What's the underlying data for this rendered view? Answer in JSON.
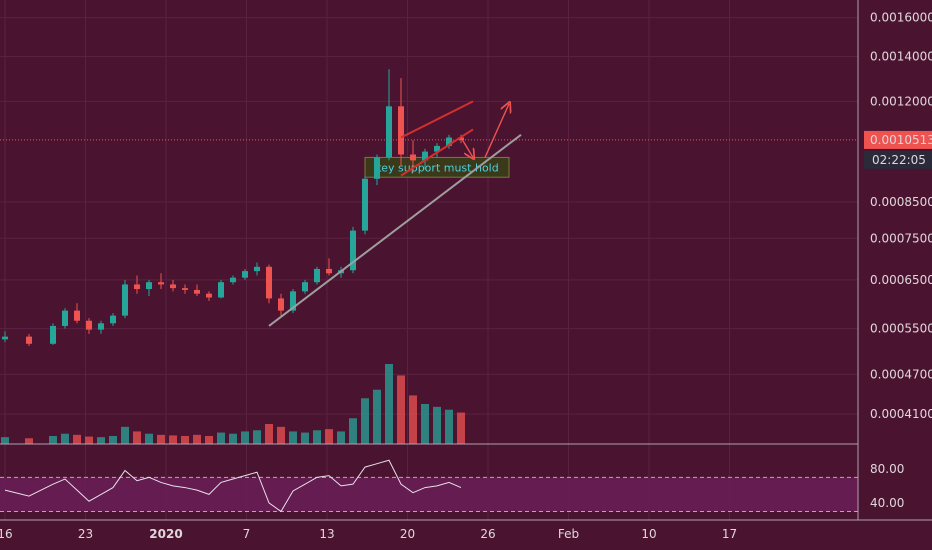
{
  "colors": {
    "background": "#4a1430",
    "up": "#26a69a",
    "down": "#ef5350",
    "grid": "#5a2240",
    "price_line": "#ef5350",
    "support_zone_fill": "#3a3a1a",
    "support_zone_border": "#7a7a3a",
    "trendline": "#9e9e9e",
    "channel": "#d32f2f",
    "rsi_line": "#e8e0e8",
    "rsi_band": "#6a1e5a",
    "annotation_text": "#4dd0e1",
    "arrow": "#ef5350",
    "current_price_label_bg": "#ef5350",
    "countdown_label_bg": "#2a2a3a"
  },
  "price_axis": {
    "ticks": [
      "0.0016000",
      "0.0014000",
      "0.0012000",
      "0.0010513",
      "0.0008500",
      "0.0007500",
      "0.0006500",
      "0.0005500",
      "0.0004700",
      "0.0004100"
    ],
    "current_price": "0.0010513",
    "countdown": "02:22:05"
  },
  "rsi_axis": {
    "ticks": [
      "80.00",
      "40.00"
    ]
  },
  "time_axis": {
    "ticks": [
      "16",
      "23",
      "2020",
      "7",
      "13",
      "20",
      "26",
      "Feb",
      "10",
      "17"
    ]
  },
  "annotation": {
    "text": "key support must hold"
  },
  "chart_data": {
    "type": "candlestick",
    "interval": "4h",
    "x_start": "2019-12-16",
    "price_scale": "log",
    "ylim": [
      0.00037,
      0.0017
    ],
    "candles": [
      {
        "date": "2019-12-16",
        "open": 0.00053,
        "high": 0.000545,
        "low": 0.000525,
        "close": 0.000535
      },
      {
        "date": "2019-12-18",
        "open": 0.000535,
        "high": 0.00054,
        "low": 0.000518,
        "close": 0.000522
      },
      {
        "date": "2019-12-20",
        "open": 0.000522,
        "high": 0.00056,
        "low": 0.00052,
        "close": 0.000555
      },
      {
        "date": "2019-12-21",
        "open": 0.000555,
        "high": 0.00059,
        "low": 0.00055,
        "close": 0.000585
      },
      {
        "date": "2019-12-22",
        "open": 0.000585,
        "high": 0.0006,
        "low": 0.00056,
        "close": 0.000565
      },
      {
        "date": "2019-12-23",
        "open": 0.000565,
        "high": 0.00057,
        "low": 0.00054,
        "close": 0.000548
      },
      {
        "date": "2019-12-24",
        "open": 0.000548,
        "high": 0.000565,
        "low": 0.00054,
        "close": 0.00056
      },
      {
        "date": "2019-12-25",
        "open": 0.00056,
        "high": 0.00058,
        "low": 0.000555,
        "close": 0.000575
      },
      {
        "date": "2019-12-26",
        "open": 0.000575,
        "high": 0.00065,
        "low": 0.00057,
        "close": 0.00064
      },
      {
        "date": "2019-12-27",
        "open": 0.00064,
        "high": 0.00066,
        "low": 0.00062,
        "close": 0.00063
      },
      {
        "date": "2019-12-28",
        "open": 0.00063,
        "high": 0.00065,
        "low": 0.000615,
        "close": 0.000645
      },
      {
        "date": "2019-12-29",
        "open": 0.000645,
        "high": 0.000665,
        "low": 0.00063,
        "close": 0.00064
      },
      {
        "date": "2019-12-30",
        "open": 0.00064,
        "high": 0.00065,
        "low": 0.000625,
        "close": 0.000632
      },
      {
        "date": "2019-12-31",
        "open": 0.000632,
        "high": 0.00064,
        "low": 0.00062,
        "close": 0.000628
      },
      {
        "date": "2020-01-01",
        "open": 0.000628,
        "high": 0.00064,
        "low": 0.000615,
        "close": 0.00062
      },
      {
        "date": "2020-01-02",
        "open": 0.00062,
        "high": 0.000625,
        "low": 0.000605,
        "close": 0.000612
      },
      {
        "date": "2020-01-03",
        "open": 0.000612,
        "high": 0.00065,
        "low": 0.00061,
        "close": 0.000645
      },
      {
        "date": "2020-01-04",
        "open": 0.000645,
        "high": 0.00066,
        "low": 0.00064,
        "close": 0.000655
      },
      {
        "date": "2020-01-05",
        "open": 0.000655,
        "high": 0.000675,
        "low": 0.00065,
        "close": 0.00067
      },
      {
        "date": "2020-01-06",
        "open": 0.00067,
        "high": 0.00069,
        "low": 0.00066,
        "close": 0.00068
      },
      {
        "date": "2020-01-07",
        "open": 0.00068,
        "high": 0.000685,
        "low": 0.0006,
        "close": 0.00061
      },
      {
        "date": "2020-01-08",
        "open": 0.00061,
        "high": 0.00062,
        "low": 0.000575,
        "close": 0.000585
      },
      {
        "date": "2020-01-09",
        "open": 0.000585,
        "high": 0.00063,
        "low": 0.00058,
        "close": 0.000625
      },
      {
        "date": "2020-01-10",
        "open": 0.000625,
        "high": 0.00065,
        "low": 0.00062,
        "close": 0.000645
      },
      {
        "date": "2020-01-11",
        "open": 0.000645,
        "high": 0.00068,
        "low": 0.00064,
        "close": 0.000675
      },
      {
        "date": "2020-01-12",
        "open": 0.000675,
        "high": 0.0007,
        "low": 0.00066,
        "close": 0.000665
      },
      {
        "date": "2020-01-13",
        "open": 0.000665,
        "high": 0.00068,
        "low": 0.000655,
        "close": 0.000672
      },
      {
        "date": "2020-01-14",
        "open": 0.000672,
        "high": 0.00078,
        "low": 0.000665,
        "close": 0.00077
      },
      {
        "date": "2020-01-15",
        "open": 0.00077,
        "high": 0.00093,
        "low": 0.00076,
        "close": 0.00092
      },
      {
        "date": "2020-01-16",
        "open": 0.00092,
        "high": 0.001,
        "low": 0.0009,
        "close": 0.00099
      },
      {
        "date": "2020-01-17",
        "open": 0.00099,
        "high": 0.00134,
        "low": 0.00098,
        "close": 0.00118
      },
      {
        "date": "2020-01-18",
        "open": 0.00118,
        "high": 0.0013,
        "low": 0.00096,
        "close": 0.001
      },
      {
        "date": "2020-01-19",
        "open": 0.001,
        "high": 0.00105,
        "low": 0.00094,
        "close": 0.00098
      },
      {
        "date": "2020-01-20",
        "open": 0.00098,
        "high": 0.00102,
        "low": 0.00095,
        "close": 0.00101
      },
      {
        "date": "2020-01-21",
        "open": 0.00101,
        "high": 0.00104,
        "low": 0.00099,
        "close": 0.00103
      },
      {
        "date": "2020-01-22",
        "open": 0.00103,
        "high": 0.00107,
        "low": 0.00102,
        "close": 0.00106
      },
      {
        "date": "2020-01-23",
        "open": 0.00106,
        "high": 0.00107,
        "low": 0.00104,
        "close": 0.001051
      }
    ],
    "volume": [
      12,
      10,
      14,
      18,
      16,
      13,
      12,
      14,
      30,
      22,
      18,
      16,
      15,
      14,
      16,
      14,
      20,
      18,
      22,
      24,
      35,
      30,
      22,
      20,
      24,
      26,
      22,
      45,
      80,
      95,
      140,
      120,
      85,
      70,
      65,
      60,
      55
    ],
    "support_zone": {
      "from": "2020-01-15",
      "to": "2020-01-27",
      "low": 0.000925,
      "high": 0.00099
    },
    "trendline": {
      "start": {
        "date": "2020-01-07",
        "price": 0.000555
      },
      "end": {
        "date": "2020-01-28",
        "price": 0.00107
      }
    },
    "channel": {
      "upper": {
        "start": {
          "date": "2020-01-18",
          "price": 0.00106
        },
        "end": {
          "date": "2020-01-24",
          "price": 0.0012
        }
      },
      "lower": {
        "start": {
          "date": "2020-01-18",
          "price": 0.00093
        },
        "end": {
          "date": "2020-01-24",
          "price": 0.00109
        }
      }
    },
    "projection": {
      "down": {
        "from": {
          "date": "2020-01-23",
          "price": 0.00106
        },
        "to": {
          "date": "2020-01-24",
          "price": 0.00099
        }
      },
      "up": {
        "from": {
          "date": "2020-01-25",
          "price": 0.00099
        },
        "to": {
          "date": "2020-01-27",
          "price": 0.00119
        }
      }
    },
    "rsi": {
      "range": [
        20,
        95
      ],
      "bands": [
        70,
        30
      ],
      "values": [
        55,
        48,
        62,
        68,
        55,
        42,
        50,
        58,
        78,
        66,
        70,
        64,
        60,
        58,
        55,
        50,
        64,
        68,
        72,
        76,
        40,
        30,
        54,
        62,
        70,
        72,
        60,
        62,
        82,
        86,
        90,
        62,
        52,
        58,
        60,
        64,
        58
      ]
    }
  }
}
